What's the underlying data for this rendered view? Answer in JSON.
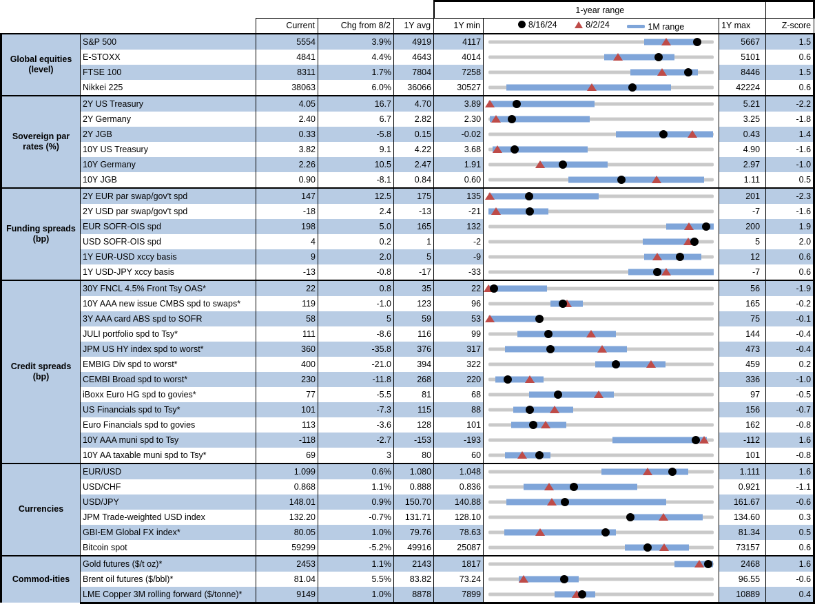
{
  "chart_data": {
    "type": "table",
    "title": "1-year range",
    "columns": [
      "Current",
      "Chg from 8/2",
      "1Y avg",
      "1Y min",
      "1Y max",
      "Z-score"
    ],
    "legend": [
      {
        "marker": "black-dot",
        "label": "8/16/24"
      },
      {
        "marker": "red-triangle",
        "label": "8/2/24"
      },
      {
        "marker": "blue-bar",
        "label": "1M range"
      }
    ],
    "colors": {
      "stripe_blue": "#B8CCE4",
      "bar_blue": "#7FA5D9",
      "marker_red": "#BE4B48",
      "marker_black": "#000000",
      "track_gray": "#C9C9C9"
    },
    "range_note": "chart positions are normalized 0-1 between 1Y min and 1Y max",
    "sections": [
      {
        "label": "Global equities (level)",
        "rows": [
          {
            "name": "S&P 500",
            "current": "5554",
            "chg": "3.9%",
            "avg": "4919",
            "min": "4117",
            "max": "5667",
            "zscore": "1.5",
            "chart": {
              "bar": [
                0.69,
                0.935
              ],
              "dot": 0.925,
              "tri": 0.79
            }
          },
          {
            "name": "E-STOXX",
            "current": "4841",
            "chg": "4.4%",
            "avg": "4643",
            "min": "4014",
            "max": "5101",
            "zscore": "0.6",
            "chart": {
              "bar": [
                0.515,
                0.825
              ],
              "dot": 0.755,
              "tri": 0.575
            }
          },
          {
            "name": "FTSE 100",
            "current": "8311",
            "chg": "1.7%",
            "avg": "7804",
            "min": "7258",
            "max": "8446",
            "zscore": "1.5",
            "chart": {
              "bar": [
                0.63,
                0.93
              ],
              "dot": 0.885,
              "tri": 0.77
            }
          },
          {
            "name": "Nikkei 225",
            "current": "38063",
            "chg": "6.0%",
            "avg": "36066",
            "min": "30527",
            "max": "42224",
            "zscore": "0.6",
            "chart": {
              "bar": [
                0.08,
                0.81
              ],
              "dot": 0.64,
              "tri": 0.46
            }
          }
        ]
      },
      {
        "label": "Sovereign par rates (%)",
        "rows": [
          {
            "name": "2Y US Treasury",
            "current": "4.05",
            "chg": "16.7",
            "avg": "4.70",
            "min": "3.89",
            "max": "5.21",
            "zscore": "-2.2",
            "chart": {
              "bar": [
                0.0,
                0.47
              ],
              "dot": 0.125,
              "tri": 0.005
            }
          },
          {
            "name": "2Y Germany",
            "current": "2.40",
            "chg": "6.7",
            "avg": "2.82",
            "min": "2.30",
            "max": "3.25",
            "zscore": "-1.8",
            "chart": {
              "bar": [
                0.005,
                0.45
              ],
              "dot": 0.105,
              "tri": 0.035
            }
          },
          {
            "name": "2Y JGB",
            "current": "0.33",
            "chg": "-5.8",
            "avg": "0.15",
            "min": "-0.02",
            "max": "0.43",
            "zscore": "1.4",
            "chart": {
              "bar": [
                0.565,
                0.995
              ],
              "dot": 0.775,
              "tri": 0.905
            }
          },
          {
            "name": "10Y US Treasury",
            "current": "3.82",
            "chg": "9.1",
            "avg": "4.22",
            "min": "3.68",
            "max": "4.90",
            "zscore": "-1.6",
            "chart": {
              "bar": [
                0.02,
                0.44
              ],
              "dot": 0.115,
              "tri": 0.04
            }
          },
          {
            "name": "10Y Germany",
            "current": "2.26",
            "chg": "10.5",
            "avg": "2.47",
            "min": "1.91",
            "max": "2.97",
            "zscore": "-1.0",
            "chart": {
              "bar": [
                0.23,
                0.53
              ],
              "dot": 0.33,
              "tri": 0.23
            }
          },
          {
            "name": "10Y JGB",
            "current": "0.90",
            "chg": "-8.1",
            "avg": "0.84",
            "min": "0.60",
            "max": "1.11",
            "zscore": "0.5",
            "chart": {
              "bar": [
                0.355,
                0.955
              ],
              "dot": 0.59,
              "tri": 0.745
            }
          }
        ]
      },
      {
        "label": "Funding spreads (bp)",
        "rows": [
          {
            "name": "2Y EUR par swap/gov't spd",
            "current": "147",
            "chg": "12.5",
            "avg": "175",
            "min": "135",
            "max": "201",
            "zscore": "-2.3",
            "chart": {
              "bar": [
                0.0,
                0.49
              ],
              "dot": 0.18,
              "tri": 0.005
            }
          },
          {
            "name": "2Y USD par swap/gov't spd",
            "current": "-18",
            "chg": "2.4",
            "avg": "-13",
            "min": "-21",
            "max": "-7",
            "zscore": "-1.6",
            "chart": {
              "bar": [
                0.0,
                0.265
              ],
              "dot": 0.185,
              "tri": 0.035
            }
          },
          {
            "name": "EUR SOFR-OIS spd",
            "current": "198",
            "chg": "5.0",
            "avg": "165",
            "min": "132",
            "max": "200",
            "zscore": "1.9",
            "chart": {
              "bar": [
                0.79,
                1.0
              ],
              "dot": 0.965,
              "tri": 0.89
            }
          },
          {
            "name": "USD SOFR-OIS spd",
            "current": "4",
            "chg": "0.2",
            "avg": "1",
            "min": "-2",
            "max": "5",
            "zscore": "2.0",
            "chart": {
              "bar": [
                0.685,
                0.925
              ],
              "dot": 0.915,
              "tri": 0.885
            }
          },
          {
            "name": "1Y EUR-USD xccy basis",
            "current": "9",
            "chg": "2.0",
            "avg": "5",
            "min": "-9",
            "max": "12",
            "zscore": "0.6",
            "chart": {
              "bar": [
                0.69,
                0.945
              ],
              "dot": 0.85,
              "tri": 0.75
            }
          },
          {
            "name": "1Y USD-JPY xccy basis",
            "current": "-13",
            "chg": "-0.8",
            "avg": "-17",
            "min": "-33",
            "max": "-7",
            "zscore": "0.6",
            "chart": {
              "bar": [
                0.62,
                1.0
              ],
              "dot": 0.75,
              "tri": 0.79
            }
          }
        ]
      },
      {
        "label": "Credit spreads (bp)",
        "rows": [
          {
            "name": "30Y FNCL 4.5% Front Tsy OAS*",
            "current": "22",
            "chg": "0.8",
            "avg": "35",
            "min": "22",
            "max": "56",
            "zscore": "-1.9",
            "chart": {
              "bar": [
                0.0,
                0.26
              ],
              "dot": 0.025,
              "tri": 0.0
            }
          },
          {
            "name": "10Y AAA new issue CMBS spd to swaps*",
            "current": "119",
            "chg": "-1.0",
            "avg": "123",
            "min": "96",
            "max": "165",
            "zscore": "-0.2",
            "chart": {
              "bar": [
                0.275,
                0.42
              ],
              "dot": 0.33,
              "tri": 0.35
            }
          },
          {
            "name": "3Y AAA card ABS spd to SOFR",
            "current": "58",
            "chg": "5",
            "avg": "59",
            "min": "53",
            "max": "75",
            "zscore": "-0.1",
            "chart": {
              "bar": [
                0.0,
                0.215
              ],
              "dot": 0.225,
              "tri": 0.005
            }
          },
          {
            "name": "JULI portfolio spd to Tsy*",
            "current": "111",
            "chg": "-8.6",
            "avg": "116",
            "min": "99",
            "max": "144",
            "zscore": "-0.4",
            "chart": {
              "bar": [
                0.13,
                0.565
              ],
              "dot": 0.265,
              "tri": 0.455
            }
          },
          {
            "name": "JPM US HY index spd to worst*",
            "current": "360",
            "chg": "-35.8",
            "avg": "376",
            "min": "317",
            "max": "473",
            "zscore": "-0.4",
            "chart": {
              "bar": [
                0.075,
                0.615
              ],
              "dot": 0.275,
              "tri": 0.505
            }
          },
          {
            "name": "EMBIG Div spd to worst*",
            "current": "400",
            "chg": "-21.0",
            "avg": "394",
            "min": "322",
            "max": "459",
            "zscore": "0.2",
            "chart": {
              "bar": [
                0.475,
                0.785
              ],
              "dot": 0.565,
              "tri": 0.72
            }
          },
          {
            "name": "CEMBI Broad spd to worst*",
            "current": "230",
            "chg": "-11.8",
            "avg": "268",
            "min": "220",
            "max": "336",
            "zscore": "-1.0",
            "chart": {
              "bar": [
                0.03,
                0.245
              ],
              "dot": 0.085,
              "tri": 0.185
            }
          },
          {
            "name": "iBoxx Euro HG spd to govies*",
            "current": "77",
            "chg": "-5.5",
            "avg": "81",
            "min": "68",
            "max": "97",
            "zscore": "-0.5",
            "chart": {
              "bar": [
                0.18,
                0.555
              ],
              "dot": 0.31,
              "tri": 0.49
            }
          },
          {
            "name": "US Financials spd to Tsy*",
            "current": "101",
            "chg": "-7.3",
            "avg": "115",
            "min": "88",
            "max": "156",
            "zscore": "-0.7",
            "chart": {
              "bar": [
                0.11,
                0.375
              ],
              "dot": 0.185,
              "tri": 0.295
            }
          },
          {
            "name": "Euro Financials spd to govies",
            "current": "113",
            "chg": "-3.6",
            "avg": "128",
            "min": "101",
            "max": "162",
            "zscore": "-0.8",
            "chart": {
              "bar": [
                0.1,
                0.345
              ],
              "dot": 0.2,
              "tri": 0.255
            }
          },
          {
            "name": "10Y AAA muni spd to Tsy",
            "current": "-118",
            "chg": "-2.7",
            "avg": "-153",
            "min": "-193",
            "max": "-112",
            "zscore": "1.6",
            "chart": {
              "bar": [
                0.55,
                0.97
              ],
              "dot": 0.92,
              "tri": 0.955
            }
          },
          {
            "name": "10Y AA taxable muni spd to Tsy*",
            "current": "69",
            "chg": "3",
            "avg": "80",
            "min": "60",
            "max": "101",
            "zscore": "-0.8",
            "chart": {
              "bar": [
                0.075,
                0.275
              ],
              "dot": 0.225,
              "tri": 0.15
            }
          }
        ]
      },
      {
        "label": "Currencies",
        "rows": [
          {
            "name": "EUR/USD",
            "current": "1.099",
            "chg": "0.6%",
            "avg": "1.080",
            "min": "1.048",
            "max": "1.111",
            "zscore": "1.6",
            "chart": {
              "bar": [
                0.5,
                0.885
              ],
              "dot": 0.815,
              "tri": 0.705
            }
          },
          {
            "name": "USD/CHF",
            "current": "0.868",
            "chg": "1.1%",
            "avg": "0.888",
            "min": "0.836",
            "max": "0.921",
            "zscore": "-1.1",
            "chart": {
              "bar": [
                0.155,
                0.66
              ],
              "dot": 0.38,
              "tri": 0.27
            }
          },
          {
            "name": "USD/JPY",
            "current": "148.01",
            "chg": "0.9%",
            "avg": "150.70",
            "min": "140.88",
            "max": "161.67",
            "zscore": "-0.6",
            "chart": {
              "bar": [
                0.08,
                0.79
              ],
              "dot": 0.34,
              "tri": 0.28
            }
          },
          {
            "name": "JPM Trade-weighted USD index",
            "current": "132.20",
            "chg": "-0.7%",
            "avg": "131.71",
            "min": "128.10",
            "max": "134.60",
            "zscore": "0.3",
            "chart": {
              "bar": [
                0.63,
                0.95
              ],
              "dot": 0.63,
              "tri": 0.775
            }
          },
          {
            "name": "GBI-EM Global FX index*",
            "current": "80.05",
            "chg": "1.0%",
            "avg": "79.76",
            "min": "78.63",
            "max": "81.34",
            "zscore": "0.5",
            "chart": {
              "bar": [
                0.07,
                0.565
              ],
              "dot": 0.52,
              "tri": 0.23
            }
          },
          {
            "name": "Bitcoin spot",
            "current": "59299",
            "chg": "-5.2%",
            "avg": "49916",
            "min": "25087",
            "max": "73157",
            "zscore": "0.6",
            "chart": {
              "bar": [
                0.605,
                0.89
              ],
              "dot": 0.705,
              "tri": 0.78
            }
          }
        ]
      },
      {
        "label": "Commod-ities",
        "rows": [
          {
            "name": "Gold futures ($/t oz)*",
            "current": "2453",
            "chg": "1.1%",
            "avg": "2143",
            "min": "1817",
            "max": "2468",
            "zscore": "1.6",
            "chart": {
              "bar": [
                0.825,
                0.995
              ],
              "dot": 0.975,
              "tri": 0.935
            }
          },
          {
            "name": "Brent oil futures ($/bbl)*",
            "current": "81.04",
            "chg": "5.5%",
            "avg": "83.82",
            "min": "73.24",
            "max": "96.55",
            "zscore": "-0.6",
            "chart": {
              "bar": [
                0.135,
                0.4
              ],
              "dot": 0.335,
              "tri": 0.155
            }
          },
          {
            "name": "LME Copper 3M rolling forward ($/tonne)*",
            "current": "9149",
            "chg": "1.0%",
            "avg": "8878",
            "min": "7899",
            "max": "10889",
            "zscore": "0.4",
            "chart": {
              "bar": [
                0.295,
                0.475
              ],
              "dot": 0.415,
              "tri": 0.39
            }
          }
        ]
      }
    ]
  }
}
